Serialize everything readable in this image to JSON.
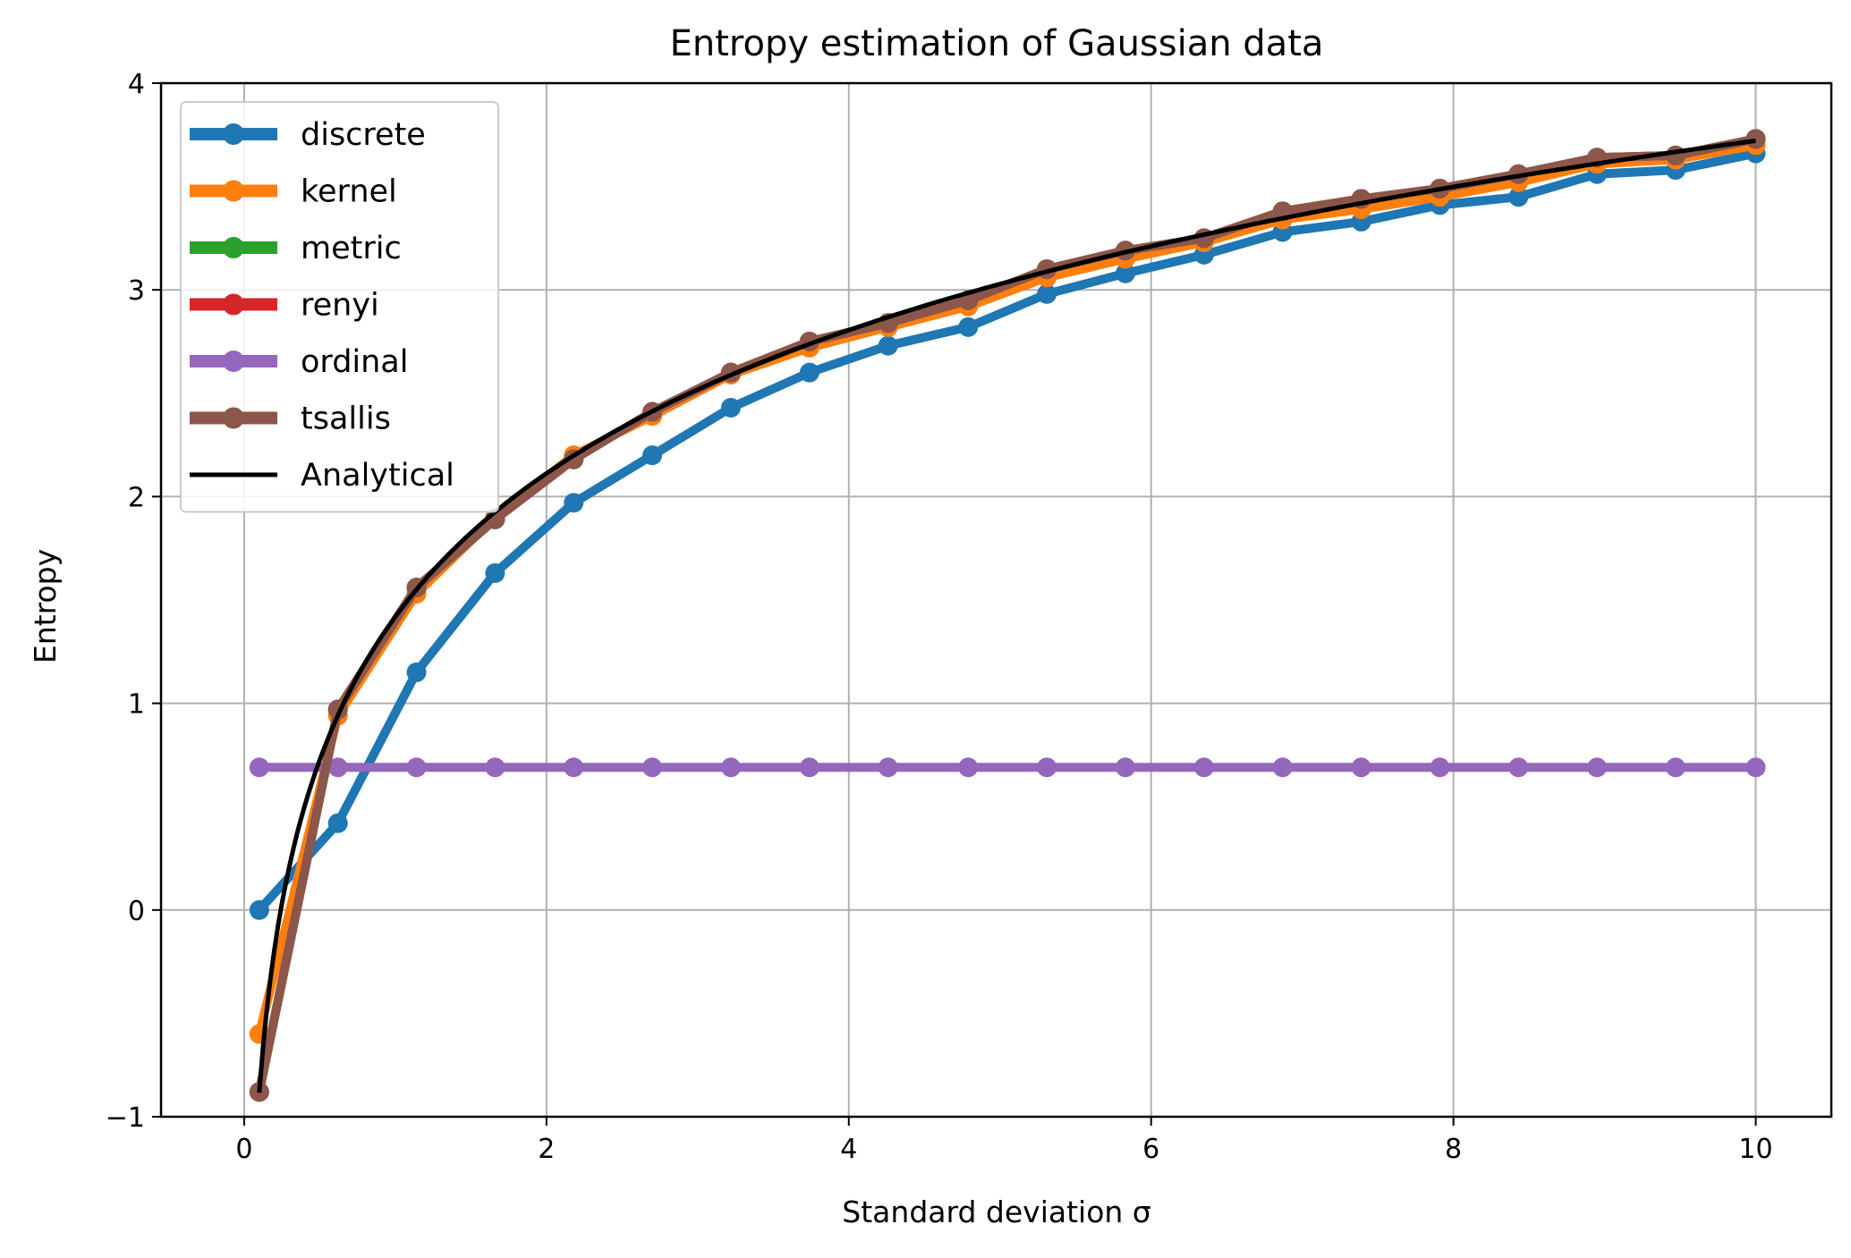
{
  "chart_data": {
    "type": "line",
    "title": "Entropy estimation of Gaussian data",
    "xlabel": "Standard deviation σ",
    "ylabel": "Entropy",
    "xlim": [
      -0.55,
      10.5
    ],
    "ylim": [
      -1,
      4
    ],
    "xticks": [
      0,
      2,
      4,
      6,
      8,
      10
    ],
    "xtick_labels": [
      "0",
      "2",
      "4",
      "6",
      "8",
      "10"
    ],
    "yticks": [
      -1,
      0,
      1,
      2,
      3,
      4
    ],
    "ytick_labels": [
      "−1",
      "0",
      "1",
      "2",
      "3",
      "4"
    ],
    "grid": true,
    "legend_position": "upper-left",
    "x": [
      0.1,
      0.62,
      1.14,
      1.66,
      2.18,
      2.7,
      3.22,
      3.74,
      4.26,
      4.79,
      5.31,
      5.83,
      6.35,
      6.87,
      7.39,
      7.91,
      8.43,
      8.95,
      9.47,
      10.0
    ],
    "series": [
      {
        "name": "discrete",
        "color": "#1f77b4",
        "line_width": 10,
        "marker_radius": 11,
        "values": [
          0.0,
          0.42,
          1.15,
          1.63,
          1.97,
          2.2,
          2.43,
          2.6,
          2.73,
          2.82,
          2.98,
          3.08,
          3.17,
          3.28,
          3.33,
          3.41,
          3.45,
          3.56,
          3.58,
          3.66
        ]
      },
      {
        "name": "kernel",
        "color": "#ff7f0e",
        "line_width": 10,
        "marker_radius": 11,
        "values": [
          -0.6,
          0.94,
          1.53,
          1.9,
          2.2,
          2.39,
          2.59,
          2.72,
          2.82,
          2.92,
          3.06,
          3.15,
          3.23,
          3.34,
          3.39,
          3.45,
          3.52,
          3.61,
          3.63,
          3.7
        ]
      },
      {
        "name": "metric",
        "color": "#2ca02c",
        "line_width": 10,
        "marker_radius": 11,
        "values": [
          -0.88,
          0.97,
          1.56,
          1.89,
          2.18,
          2.41,
          2.6,
          2.75,
          2.84,
          2.95,
          3.1,
          3.19,
          3.25,
          3.38,
          3.44,
          3.49,
          3.56,
          3.64,
          3.65,
          3.73
        ]
      },
      {
        "name": "renyi",
        "color": "#d62728",
        "line_width": 10,
        "marker_radius": 11,
        "values": [
          -0.88,
          0.97,
          1.56,
          1.89,
          2.18,
          2.41,
          2.6,
          2.75,
          2.84,
          2.95,
          3.1,
          3.19,
          3.25,
          3.38,
          3.44,
          3.49,
          3.56,
          3.64,
          3.65,
          3.73
        ]
      },
      {
        "name": "ordinal",
        "color": "#9467bd",
        "line_width": 10,
        "marker_radius": 11,
        "values": [
          0.69,
          0.69,
          0.69,
          0.69,
          0.69,
          0.69,
          0.69,
          0.69,
          0.69,
          0.69,
          0.69,
          0.69,
          0.69,
          0.69,
          0.69,
          0.69,
          0.69,
          0.69,
          0.69,
          0.69
        ]
      },
      {
        "name": "tsallis",
        "color": "#8c564b",
        "line_width": 10,
        "marker_radius": 11,
        "values": [
          -0.88,
          0.97,
          1.56,
          1.89,
          2.18,
          2.41,
          2.6,
          2.75,
          2.84,
          2.95,
          3.1,
          3.19,
          3.25,
          3.38,
          3.44,
          3.49,
          3.56,
          3.64,
          3.65,
          3.73
        ]
      }
    ],
    "analytical": {
      "name": "Analytical",
      "color": "#000000",
      "formula": "0.5*ln(2*pi*e*sigma^2)",
      "line_width": 5
    }
  }
}
